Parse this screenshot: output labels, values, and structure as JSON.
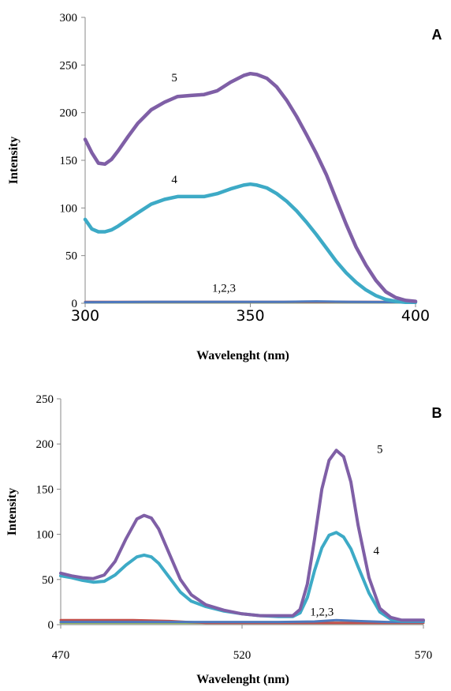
{
  "chart_data": [
    {
      "type": "line",
      "panel_label": "A",
      "xlabel": "Wavelenght (nm)",
      "ylabel": "Intensity",
      "xlim": [
        300,
        400
      ],
      "ylim": [
        0,
        300
      ],
      "x_ticks": [
        "300",
        "350",
        "400"
      ],
      "y_ticks": [
        "0",
        "50",
        "100",
        "150",
        "200",
        "250",
        "300"
      ],
      "annotations": [
        {
          "text": "5",
          "x": 327,
          "y": 233
        },
        {
          "text": "4",
          "x": 327,
          "y": 126
        },
        {
          "text": "1,2,3",
          "x": 342,
          "y": 12
        }
      ],
      "series": [
        {
          "color": "#7f5fa6",
          "x": [
            300,
            302,
            304,
            306,
            308,
            310,
            313,
            316,
            320,
            324,
            328,
            332,
            336,
            340,
            344,
            348,
            350,
            352,
            355,
            358,
            361,
            364,
            367,
            370,
            373,
            376,
            379,
            382,
            385,
            388,
            391,
            394,
            397,
            400
          ],
          "y": [
            172,
            158,
            147,
            146,
            151,
            160,
            175,
            189,
            203,
            211,
            217,
            218,
            219,
            223,
            232,
            239,
            241,
            240,
            236,
            227,
            213,
            196,
            177,
            157,
            135,
            109,
            83,
            59,
            40,
            24,
            12,
            6,
            3,
            2
          ]
        },
        {
          "color": "#3daac6",
          "x": [
            300,
            302,
            304,
            306,
            308,
            310,
            313,
            316,
            320,
            324,
            328,
            332,
            336,
            340,
            344,
            348,
            350,
            352,
            355,
            358,
            361,
            364,
            367,
            370,
            373,
            376,
            379,
            382,
            385,
            388,
            391,
            394,
            397,
            400
          ],
          "y": [
            88,
            78,
            75,
            75,
            77,
            81,
            88,
            95,
            104,
            109,
            112,
            112,
            112,
            115,
            120,
            124,
            125,
            124,
            121,
            115,
            107,
            97,
            85,
            72,
            58,
            44,
            32,
            22,
            14,
            8,
            4,
            2,
            1,
            1
          ]
        },
        {
          "color": "#4f79bd",
          "x": [
            300,
            320,
            340,
            360,
            370,
            380,
            400
          ],
          "y": [
            1,
            1.5,
            1.5,
            1.5,
            2,
            1.5,
            1
          ]
        },
        {
          "color": "#c0504d",
          "x": [
            300,
            320,
            340,
            360,
            380,
            400
          ],
          "y": [
            1.5,
            1.5,
            1.5,
            1.5,
            1.5,
            1.5
          ]
        },
        {
          "color": "#9bbb59",
          "x": [
            300,
            320,
            340,
            360,
            380,
            400
          ],
          "y": [
            1,
            1,
            1,
            1,
            1,
            1
          ]
        }
      ]
    },
    {
      "type": "line",
      "panel_label": "B",
      "xlabel": "Wavelenght (nm)",
      "ylabel": "Intensity",
      "xlim": [
        470,
        570
      ],
      "ylim": [
        0,
        250
      ],
      "x_ticks": [
        "470",
        "520",
        "570"
      ],
      "y_ticks": [
        "0",
        "50",
        "100",
        "150",
        "200",
        "250"
      ],
      "annotations": [
        {
          "text": "5",
          "x": 558,
          "y": 190
        },
        {
          "text": "4",
          "x": 557,
          "y": 78
        },
        {
          "text": "1,2,3",
          "x": 542,
          "y": 10
        }
      ],
      "series": [
        {
          "color": "#7f5fa6",
          "x": [
            470,
            473,
            476,
            479,
            482,
            485,
            488,
            491,
            493,
            495,
            497,
            500,
            503,
            506,
            510,
            515,
            520,
            525,
            530,
            534,
            536,
            538,
            540,
            542,
            544,
            546,
            548,
            550,
            552,
            555,
            558,
            561,
            564,
            567,
            570
          ],
          "y": [
            57,
            54,
            52,
            51,
            55,
            70,
            95,
            117,
            121,
            118,
            106,
            78,
            50,
            33,
            22,
            16,
            12,
            10,
            10,
            10,
            17,
            45,
            95,
            150,
            182,
            193,
            186,
            158,
            110,
            52,
            18,
            8,
            5,
            5,
            5
          ]
        },
        {
          "color": "#3daac6",
          "x": [
            470,
            473,
            476,
            479,
            482,
            485,
            488,
            491,
            493,
            495,
            497,
            500,
            503,
            506,
            510,
            515,
            520,
            525,
            530,
            534,
            536,
            538,
            540,
            542,
            544,
            546,
            548,
            550,
            552,
            555,
            558,
            561,
            564,
            567,
            570
          ],
          "y": [
            54,
            52,
            49,
            47,
            48,
            55,
            66,
            75,
            77,
            75,
            68,
            52,
            36,
            26,
            20,
            15,
            12,
            10,
            9,
            9,
            13,
            30,
            60,
            85,
            99,
            102,
            97,
            84,
            64,
            35,
            14,
            6,
            4,
            4,
            4
          ]
        },
        {
          "color": "#4f79bd",
          "x": [
            470,
            500,
            530,
            540,
            546,
            552,
            560,
            570
          ],
          "y": [
            3,
            3,
            3,
            3.5,
            5,
            4,
            3,
            3
          ]
        },
        {
          "color": "#c0504d",
          "x": [
            470,
            480,
            490,
            500,
            505,
            510,
            520,
            530,
            550,
            570
          ],
          "y": [
            5,
            5,
            5,
            4,
            3,
            2,
            2,
            2,
            2,
            2
          ]
        },
        {
          "color": "#9bbb59",
          "x": [
            470,
            490,
            510,
            530,
            550,
            570
          ],
          "y": [
            2,
            2,
            2,
            2,
            2,
            2
          ]
        }
      ]
    }
  ]
}
